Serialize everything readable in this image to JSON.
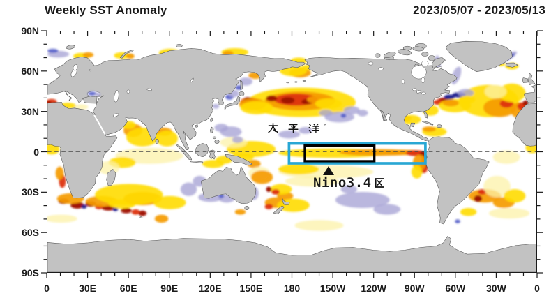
{
  "header": {
    "title": "Weekly SST Anomaly",
    "period": "2023/05/07 - 2023/05/13"
  },
  "map": {
    "pacific_label": "太 平 洋",
    "nino_label": "Nino3.4区",
    "nino_label_latin": "Nino3.4",
    "nino_label_cjk": "区"
  },
  "axes": {
    "lat_ticks": [
      {
        "label": "90N",
        "deg": 90
      },
      {
        "label": "60N",
        "deg": 60
      },
      {
        "label": "30N",
        "deg": 30
      },
      {
        "label": "0",
        "deg": 0
      },
      {
        "label": "30S",
        "deg": -30
      },
      {
        "label": "60S",
        "deg": -60
      },
      {
        "label": "90S",
        "deg": -90
      }
    ],
    "lon_ticks": [
      {
        "label": "0",
        "deg": 0
      },
      {
        "label": "30E",
        "deg": 30
      },
      {
        "label": "60E",
        "deg": 60
      },
      {
        "label": "90E",
        "deg": 90
      },
      {
        "label": "120E",
        "deg": 120
      },
      {
        "label": "150E",
        "deg": 150
      },
      {
        "label": "180",
        "deg": 180
      },
      {
        "label": "150W",
        "deg": 210
      },
      {
        "label": "120W",
        "deg": 240
      },
      {
        "label": "90W",
        "deg": 270
      },
      {
        "label": "60W",
        "deg": 300
      },
      {
        "label": "30W",
        "deg": 330
      },
      {
        "label": "0",
        "deg": 360
      }
    ]
  },
  "colors": {
    "land": "#c2c2c2",
    "coast": "#4f4f4f",
    "ocean": "#ffffff",
    "grid_dash": "#4a4a4a",
    "nino_box": "#000000",
    "monitor_box": "#29a7d4",
    "anomaly": {
      "pale_yellow": "#fcf2a8",
      "yellow": "#ffdb00",
      "orange": "#f59b00",
      "red": "#dd3112",
      "dark_red": "#9f1206",
      "pale_purple": "#a9a5d6",
      "blue": "#5761c9",
      "navy": "#1d1f8e"
    }
  },
  "chart_data": {
    "type": "heatmap",
    "title": "Weekly SST Anomaly",
    "period": "2023/05/07 - 2023/05/13",
    "projection": "equirectangular world map, longitude 0E eastward to 360 (0), latitude 90N to 90S",
    "x_ticks": [
      "0",
      "30E",
      "60E",
      "90E",
      "120E",
      "150E",
      "180",
      "150W",
      "120W",
      "90W",
      "60W",
      "30W",
      "0"
    ],
    "y_ticks": [
      "90N",
      "60N",
      "30N",
      "0",
      "30S",
      "60S",
      "90S"
    ],
    "grid": "dashed reference lines at Equator and 180",
    "legend": "none shown (no colorbar in image)",
    "annotations": [
      {
        "text": "太 平 洋",
        "meaning": "Pacific Ocean",
        "lon": "160E-180",
        "lat": "8N"
      },
      {
        "text": "Nino3.4区",
        "meaning": "Nino3.4 region",
        "marker": "black up-triangle pointing to boxed region",
        "lon": "150W",
        "lat": "12S"
      }
    ],
    "regions": [
      {
        "name": "Nino3.4区",
        "outline_color": "#000000",
        "lon_from_deg_east": 189.5,
        "lon_to_deg_east": 240.7,
        "lat_top": 4.7,
        "lat_bottom": -7.0,
        "nominal": "170W-120W, 5N-5S"
      },
      {
        "name": "monitoring box",
        "outline_color": "#29a7d4",
        "lon_from_deg_east": 177.9,
        "lon_to_deg_east": 278.3,
        "lat_top": 6.2,
        "lat_bottom": -8.6
      }
    ],
    "features": [
      {
        "region": "central North Pacific (~170E-150W, 30-45N)",
        "anomaly": "large strong warm blob, red/dark-red core"
      },
      {
        "region": "Kuroshio east of Japan (~145-155E, 35-40N)",
        "anomaly": "strong warm, dark-red spots"
      },
      {
        "region": "equatorial central-eastern Pacific (inside boxes)",
        "anomaly": "warm yellow-orange stripe strengthening toward South America"
      },
      {
        "region": "Peru/Ecuador coast (~80W, 0-15S)",
        "anomaly": "very strong warm, dark red"
      },
      {
        "region": "subtropical NE Pacific and south of Japan",
        "anomaly": "patchy weak cool (lavender)"
      },
      {
        "region": "SE Pacific midlatitudes (~140-100W, 30-45S)",
        "anomaly": "patchy weak cool"
      },
      {
        "region": "Gulf Stream / NW Atlantic (~75-45W, 35-43N)",
        "anomaly": "mixed strong warm (dark red) and strong cool (navy)"
      },
      {
        "region": "subtropical North Atlantic to NW Africa/Iberia",
        "anomaly": "broad warm, orange-red core near coast"
      },
      {
        "region": "Labrador Sea / East Greenland current",
        "anomaly": "cool streaks (purple/blue)"
      },
      {
        "region": "southern Indian Ocean ~35-45S",
        "anomaly": "patchy strong warm with dark-red/navy speckles (Agulhas band)"
      },
      {
        "region": "Arabian Sea and Bay of Bengal",
        "anomaly": "warm"
      },
      {
        "region": "around Australia (west, south, east)",
        "anomaly": "patchy weak cool"
      },
      {
        "region": "Tasman Sea / around New Zealand",
        "anomaly": "warm, orange-red patches"
      },
      {
        "region": "South Atlantic ~30-40S",
        "anomaly": "warm with dark-red spot"
      },
      {
        "region": "Black Sea",
        "anomaly": "cool (blue)"
      },
      {
        "region": "western Mediterranean",
        "anomaly": "strong warm (red)"
      },
      {
        "region": "Arctic marginal seas (Barents-Laptev, Bering)",
        "anomaly": "scattered warm patches; cool near Svalbard"
      }
    ]
  }
}
